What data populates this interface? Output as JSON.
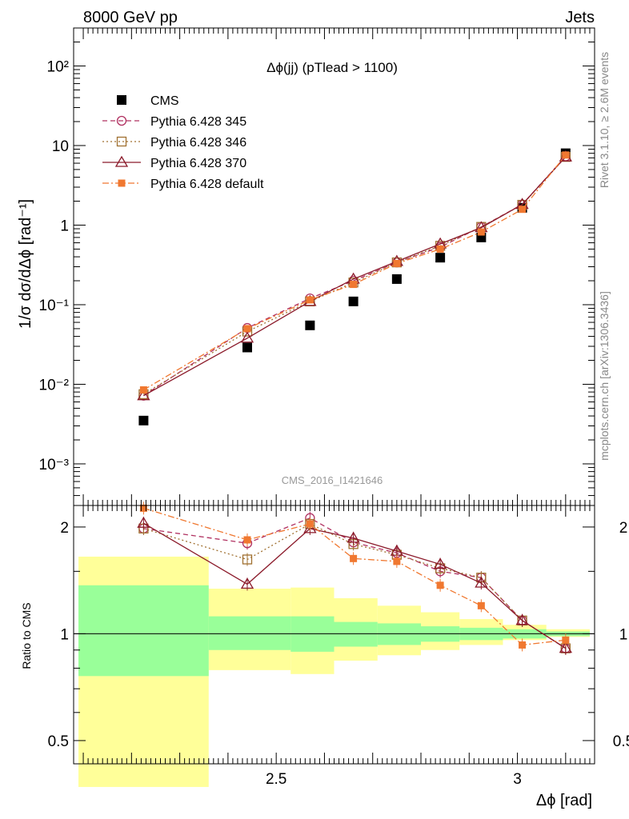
{
  "header": {
    "left": "8000 GeV pp",
    "right": "Jets"
  },
  "side_text": {
    "rivet": "Rivet 3.1.10, ≥ 2.6M events",
    "mcplots": "mcplots.cern.ch [arXiv:1306.3436]"
  },
  "chart_data": [
    {
      "type": "scatter",
      "title": "Δϕ(jj) (pTlead >  1100)",
      "watermark": "CMS_2016_I1421646",
      "ylabel": "1/σ dσ/dΔϕ [rad⁻¹]",
      "xlabel": "Δϕ [rad]",
      "yscale": "log",
      "xlim": [
        2.08,
        3.16
      ],
      "ylim": [
        0.0003,
        300
      ],
      "yticks": [
        "10⁻³",
        "10⁻²",
        "10⁻¹",
        "1",
        "10",
        "10²"
      ],
      "legend_position": "top-left",
      "x": [
        2.225,
        2.44,
        2.57,
        2.66,
        2.75,
        2.84,
        2.925,
        3.01,
        3.1
      ],
      "series": [
        {
          "name": "CMS",
          "color": "#000000",
          "marker": "square-filled",
          "values": [
            0.0035,
            0.029,
            0.055,
            0.11,
            0.21,
            0.39,
            0.7,
            1.65,
            8.0
          ]
        },
        {
          "name": "Pythia 6.428 345",
          "color": "#b03060",
          "marker": "circle-open",
          "dash": "6,4",
          "values": [
            0.0072,
            0.051,
            0.12,
            0.2,
            0.34,
            0.53,
            0.95,
            1.82,
            7.3
          ]
        },
        {
          "name": "Pythia 6.428 346",
          "color": "#a07030",
          "marker": "square-open",
          "dash": "2,3",
          "values": [
            0.0075,
            0.046,
            0.11,
            0.19,
            0.34,
            0.55,
            0.95,
            1.8,
            7.2
          ]
        },
        {
          "name": "Pythia 6.428 370",
          "color": "#8b1a2a",
          "marker": "triangle-open",
          "dash": "",
          "values": [
            0.0072,
            0.038,
            0.11,
            0.21,
            0.35,
            0.58,
            0.93,
            1.82,
            7.2
          ]
        },
        {
          "name": "Pythia 6.428 default",
          "color": "#f07830",
          "marker": "square-filled-small",
          "dash": "8,3,2,3",
          "values": [
            0.0085,
            0.05,
            0.115,
            0.18,
            0.33,
            0.5,
            0.82,
            1.58,
            7.6
          ]
        }
      ]
    },
    {
      "type": "scatter",
      "ylabel": "Ratio to CMS",
      "xlabel": "Δϕ [rad]",
      "yscale": "log",
      "xlim": [
        2.08,
        3.16
      ],
      "ylim": [
        0.43,
        2.3
      ],
      "xticks": [
        "2.5",
        "3"
      ],
      "yticks": [
        "0.5",
        "1",
        "2"
      ],
      "bands": {
        "bin_edges": [
          2.09,
          2.36,
          2.53,
          2.62,
          2.71,
          2.8,
          2.88,
          2.97,
          3.06,
          3.15
        ],
        "inner_green": [
          [
            0.76,
            1.37
          ],
          [
            0.9,
            1.12
          ],
          [
            0.89,
            1.12
          ],
          [
            0.92,
            1.08
          ],
          [
            0.93,
            1.07
          ],
          [
            0.95,
            1.05
          ],
          [
            0.96,
            1.04
          ],
          [
            0.97,
            1.03
          ],
          [
            0.985,
            1.015
          ]
        ],
        "outer_yellow": [
          [
            0.37,
            1.65
          ],
          [
            0.79,
            1.34
          ],
          [
            0.77,
            1.35
          ],
          [
            0.84,
            1.26
          ],
          [
            0.87,
            1.2
          ],
          [
            0.9,
            1.15
          ],
          [
            0.93,
            1.1
          ],
          [
            0.96,
            1.06
          ],
          [
            0.98,
            1.03
          ]
        ]
      },
      "x": [
        2.225,
        2.44,
        2.57,
        2.66,
        2.75,
        2.84,
        2.925,
        3.01,
        3.1
      ],
      "series": [
        {
          "name": "Pythia 6.428 345",
          "values": [
            1.98,
            1.8,
            2.12,
            1.81,
            1.69,
            1.5,
            1.44,
            1.09,
            0.91
          ]
        },
        {
          "name": "Pythia 6.428 346",
          "values": [
            1.98,
            1.62,
            2.04,
            1.79,
            1.67,
            1.53,
            1.44,
            1.09,
            0.91
          ]
        },
        {
          "name": "Pythia 6.428 370",
          "values": [
            2.05,
            1.38,
            1.98,
            1.86,
            1.71,
            1.57,
            1.39,
            1.09,
            0.91
          ]
        },
        {
          "name": "Pythia 6.428 default",
          "values": [
            2.26,
            1.84,
            2.04,
            1.63,
            1.6,
            1.37,
            1.2,
            0.93,
            0.96
          ]
        }
      ]
    }
  ]
}
